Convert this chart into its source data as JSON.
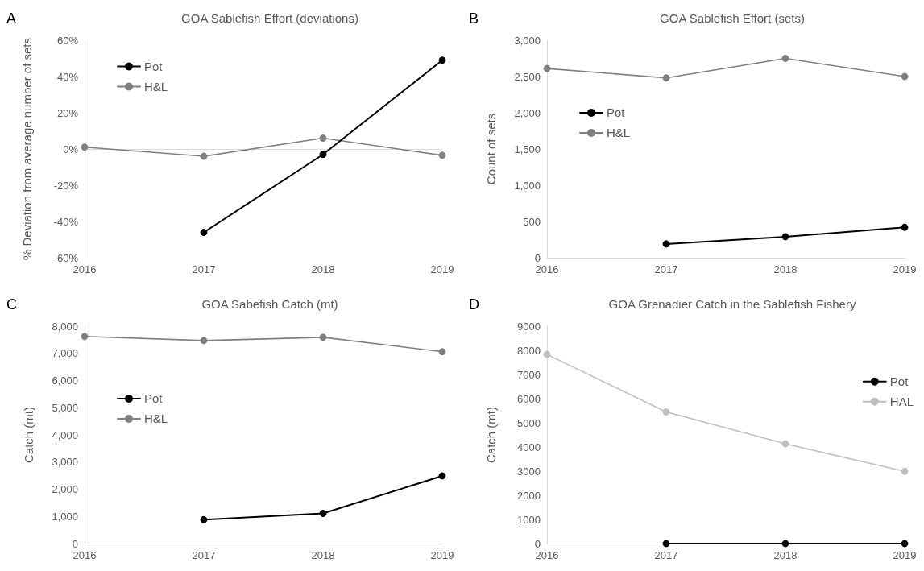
{
  "chart_data": [
    {
      "type": "line",
      "title": "GOA Sablefish Effort (deviations)",
      "ylabel": "% Deviation from average number of sets",
      "annotations": [
        "A"
      ],
      "x": [
        2016,
        2017,
        2018,
        2019
      ],
      "xlim": [
        2016,
        2019
      ],
      "xticks": [
        2016,
        2017,
        2018,
        2019
      ],
      "ylim": [
        -60,
        60
      ],
      "yticks": [
        {
          "value": -60,
          "label": "-60%"
        },
        {
          "value": -40,
          "label": "-40%"
        },
        {
          "value": -20,
          "label": "-20%"
        },
        {
          "value": 0,
          "label": "0%"
        },
        {
          "value": 20,
          "label": "20%"
        },
        {
          "value": 40,
          "label": "40%"
        },
        {
          "value": 60,
          "label": "60%"
        }
      ],
      "ref_lines": [
        {
          "axis": "y",
          "value": 0,
          "color": "#d9d9d9"
        }
      ],
      "grid": false,
      "legend": "top left",
      "marker": "circle",
      "line_style": "solid",
      "series": [
        {
          "name": "Pot",
          "color": "#000000",
          "values": [
            null,
            -46,
            -3,
            49
          ]
        },
        {
          "name": "H&L",
          "color": "#7f7f7f",
          "values": [
            1,
            -4,
            6,
            -3.5
          ]
        }
      ]
    },
    {
      "type": "line",
      "title": "GOA Sablefish Effort (sets)",
      "ylabel": "Count of sets",
      "annotations": [
        "B"
      ],
      "x": [
        2016,
        2017,
        2018,
        2019
      ],
      "xlim": [
        2016,
        2019
      ],
      "xticks": [
        2016,
        2017,
        2018,
        2019
      ],
      "ylim": [
        0,
        3000
      ],
      "yticks": [
        0,
        500,
        {
          "value": 1000,
          "label": "1,000"
        },
        {
          "value": 1500,
          "label": "1,500"
        },
        {
          "value": 2000,
          "label": "2,000"
        },
        {
          "value": 2500,
          "label": "2,500"
        },
        {
          "value": 3000,
          "label": "3,000"
        }
      ],
      "grid": false,
      "legend": "left",
      "marker": "circle",
      "line_style": "solid",
      "series": [
        {
          "name": "Pot",
          "color": "#000000",
          "values": [
            null,
            190,
            290,
            420
          ]
        },
        {
          "name": "H&L",
          "color": "#7f7f7f",
          "values": [
            2610,
            2480,
            2750,
            2500
          ]
        }
      ]
    },
    {
      "type": "line",
      "title": "GOA Sabefish Catch (mt)",
      "ylabel": "Catch (mt)",
      "annotations": [
        "C"
      ],
      "x": [
        2016,
        2017,
        2018,
        2019
      ],
      "xlim": [
        2016,
        2019
      ],
      "xticks": [
        2016,
        2017,
        2018,
        2019
      ],
      "ylim": [
        0,
        8000
      ],
      "yticks": [
        0,
        {
          "value": 1000,
          "label": "1,000"
        },
        {
          "value": 2000,
          "label": "2,000"
        },
        {
          "value": 3000,
          "label": "3,000"
        },
        {
          "value": 4000,
          "label": "4,000"
        },
        {
          "value": 5000,
          "label": "5,000"
        },
        {
          "value": 6000,
          "label": "6,000"
        },
        {
          "value": 7000,
          "label": "7,000"
        },
        {
          "value": 8000,
          "label": "8,000"
        }
      ],
      "grid": false,
      "legend": "left",
      "marker": "circle",
      "line_style": "solid",
      "series": [
        {
          "name": "Pot",
          "color": "#000000",
          "values": [
            null,
            880,
            1110,
            2490
          ]
        },
        {
          "name": "H&L",
          "color": "#7f7f7f",
          "values": [
            7620,
            7470,
            7590,
            7060
          ]
        }
      ]
    },
    {
      "type": "line",
      "title": "GOA Grenadier Catch in the Sablefish Fishery",
      "ylabel": "Catch (mt)",
      "annotations": [
        "D"
      ],
      "x": [
        2016,
        2017,
        2018,
        2019
      ],
      "xlim": [
        2016,
        2019
      ],
      "xticks": [
        2016,
        2017,
        2018,
        2019
      ],
      "ylim": [
        0,
        9000
      ],
      "yticks": [
        0,
        1000,
        2000,
        3000,
        4000,
        5000,
        6000,
        7000,
        8000,
        9000
      ],
      "grid": false,
      "legend": "right",
      "marker": "circle",
      "line_style": "solid",
      "series": [
        {
          "name": "Pot",
          "color": "#000000",
          "values": [
            null,
            0,
            0,
            0
          ]
        },
        {
          "name": "HAL",
          "color": "#bfbfbf",
          "values": [
            7830,
            5450,
            4130,
            2990
          ]
        }
      ]
    }
  ]
}
